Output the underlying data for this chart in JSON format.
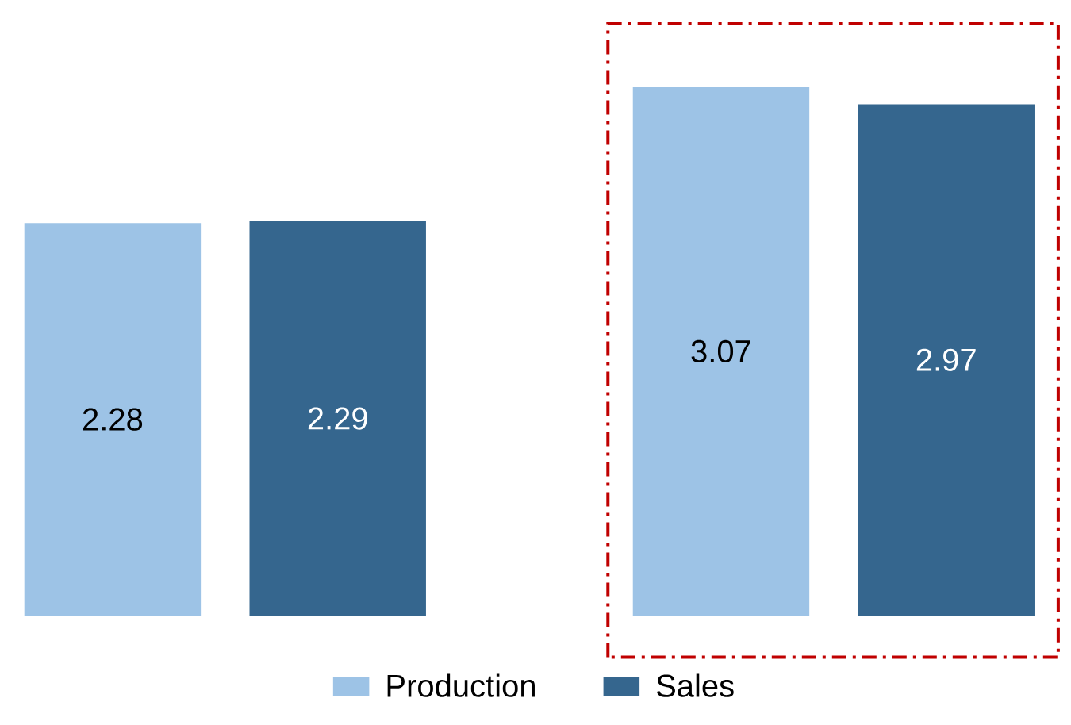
{
  "chart_data": {
    "type": "bar",
    "categories": [
      null,
      null
    ],
    "series": [
      {
        "name": "Production",
        "color": "#9dc3e6",
        "values": [
          2.28,
          3.07
        ]
      },
      {
        "name": "Sales",
        "color": "#35668e",
        "values": [
          2.29,
          2.97
        ]
      }
    ],
    "data_labels": true,
    "legend": "bottom"
  }
}
